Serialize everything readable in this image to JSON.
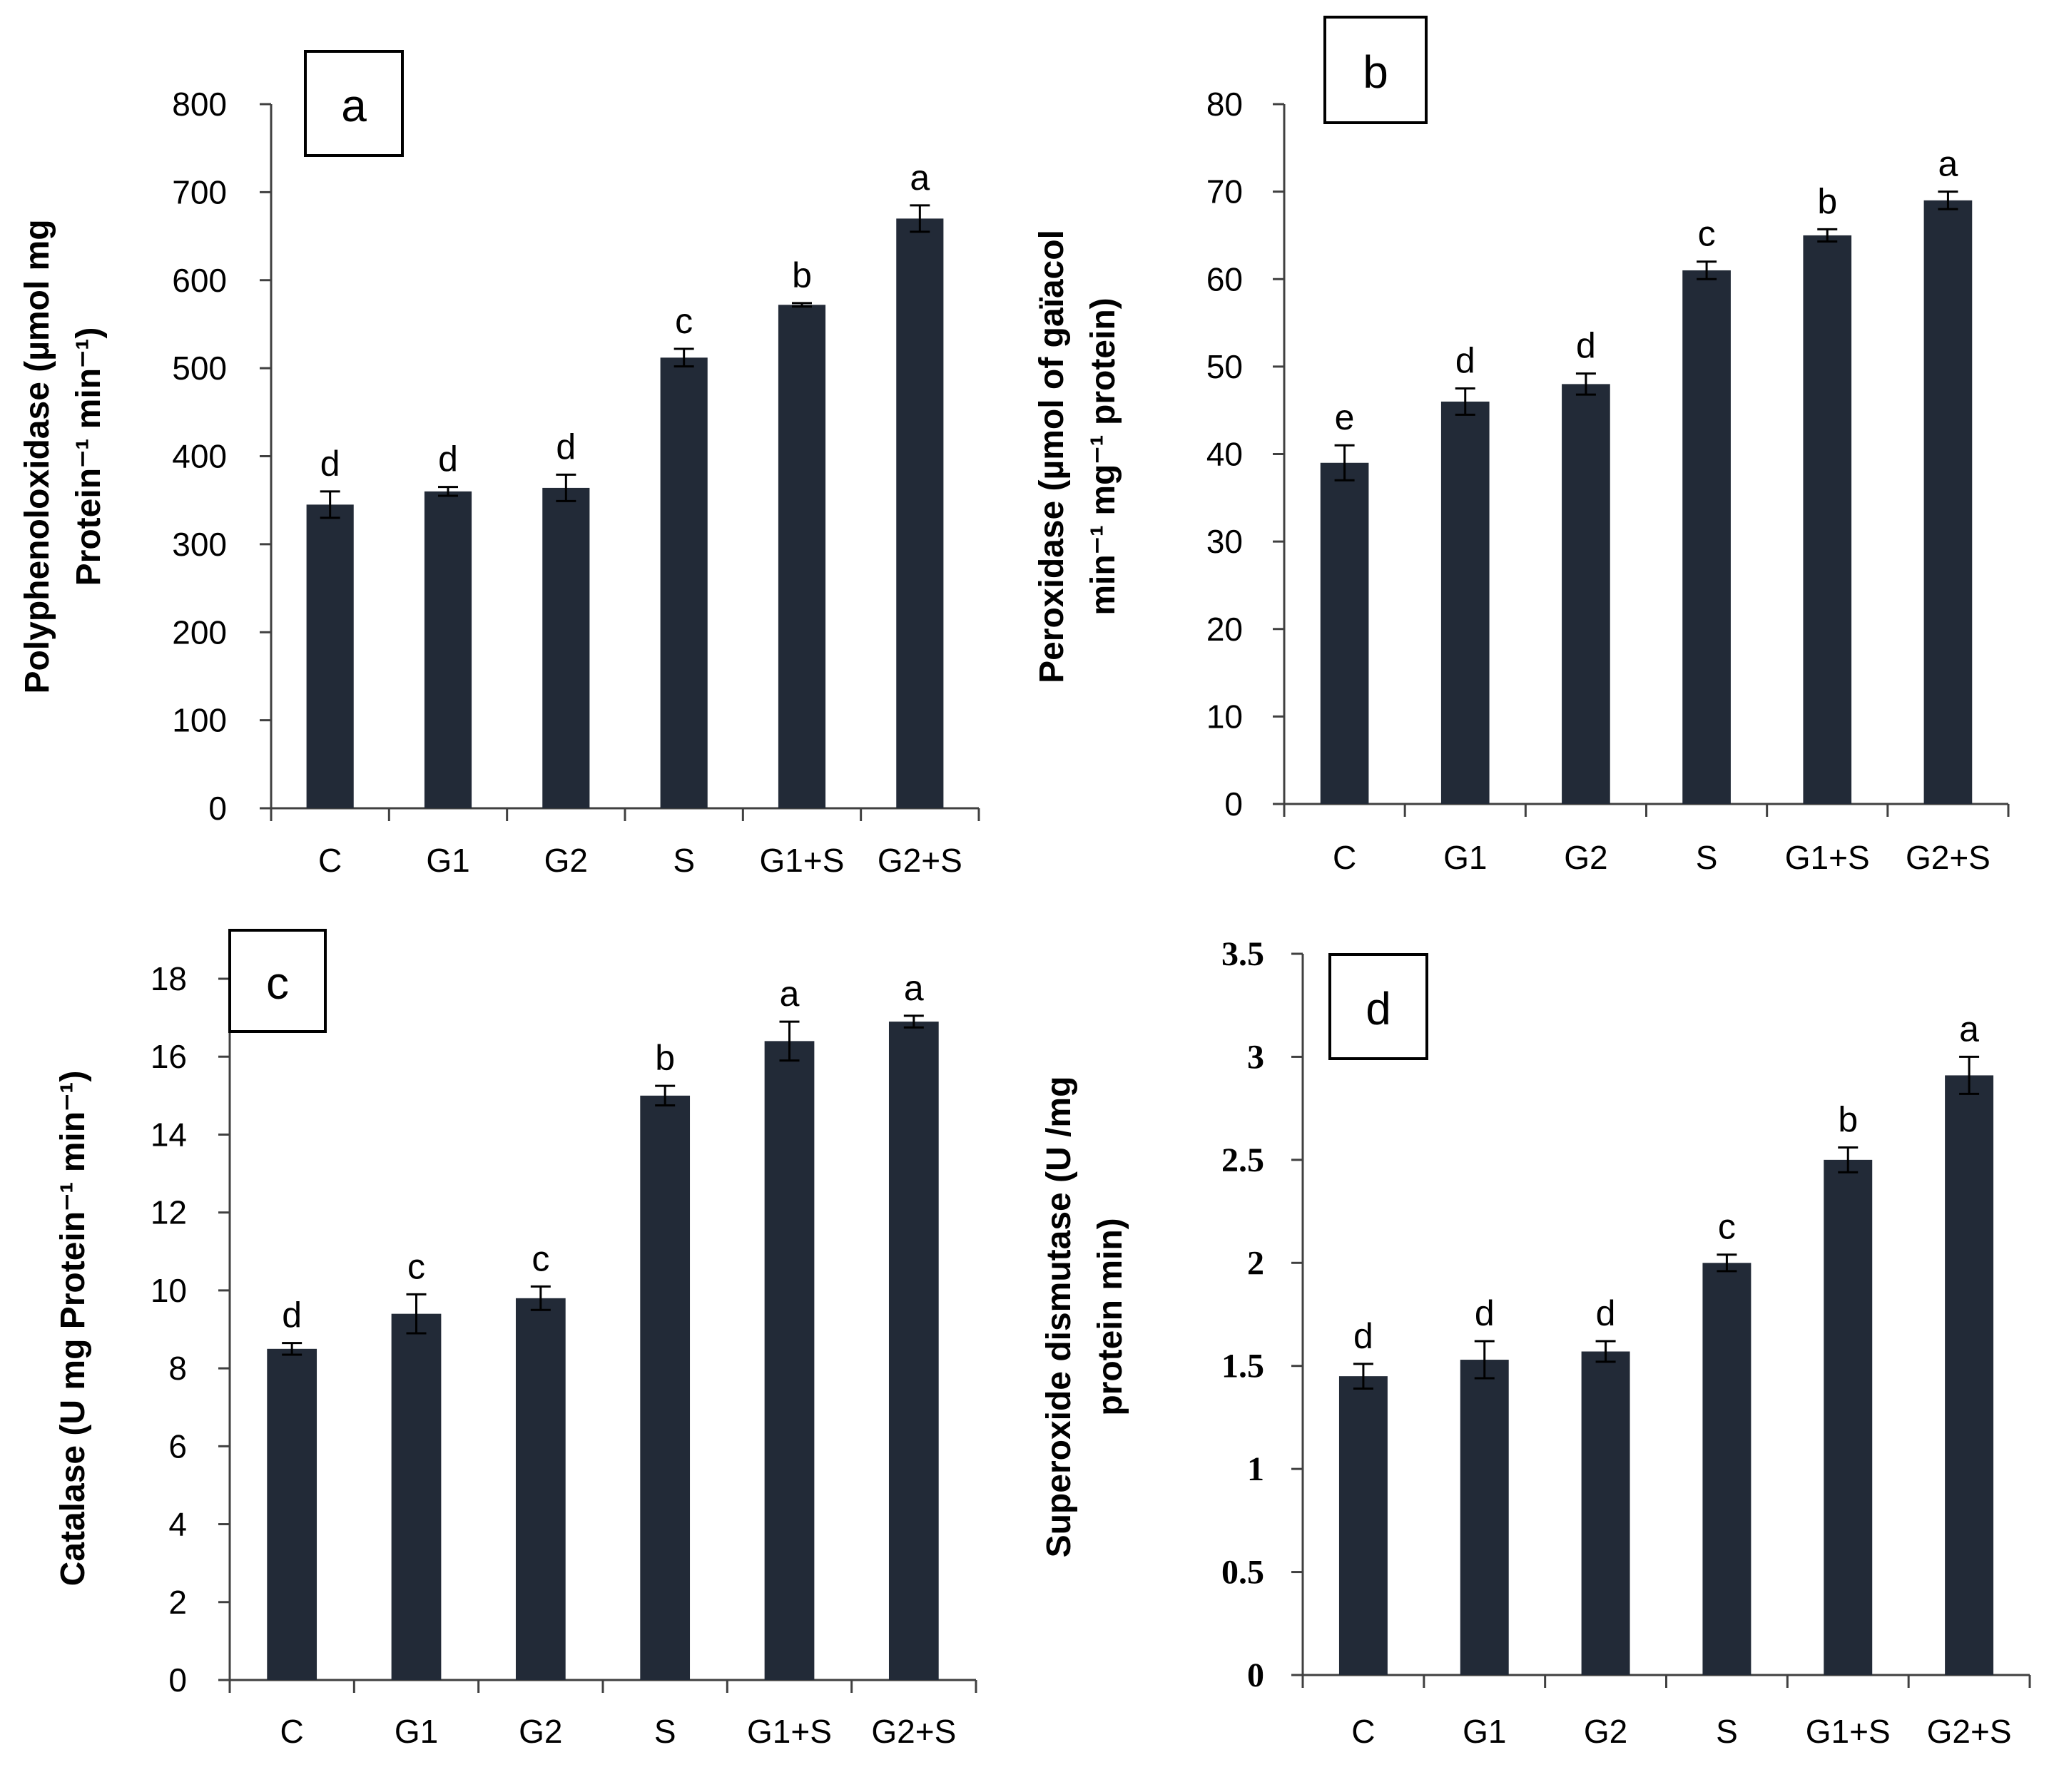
{
  "chart_data": [
    {
      "panel": "a",
      "type": "bar",
      "categories": [
        "C",
        "G1",
        "G2",
        "S",
        "G1+S",
        "G2+S"
      ],
      "values": [
        345,
        360,
        364,
        512,
        572,
        670
      ],
      "errors": [
        15,
        5,
        15,
        10,
        2,
        15
      ],
      "significance": [
        "d",
        "d",
        "d",
        "c",
        "b",
        "a"
      ],
      "ylim": [
        0,
        800
      ],
      "yticks": [
        "0",
        "100",
        "200",
        "300",
        "400",
        "500",
        "600",
        "700",
        "800"
      ],
      "ylabel": [
        "Polyphenoloxidase (µmol mg",
        "Protein⁻¹ min⁻¹)"
      ],
      "color": "#222a37"
    },
    {
      "panel": "b",
      "type": "bar",
      "categories": [
        "C",
        "G1",
        "G2",
        "S",
        "G1+S",
        "G2+S"
      ],
      "values": [
        39,
        46,
        48,
        61,
        65,
        69
      ],
      "errors": [
        2,
        1.5,
        1.2,
        1,
        0.7,
        1
      ],
      "significance": [
        "e",
        "d",
        "d",
        "c",
        "b",
        "a"
      ],
      "ylim": [
        0,
        80
      ],
      "yticks": [
        "0",
        "10",
        "20",
        "30",
        "40",
        "50",
        "60",
        "70",
        "80"
      ],
      "ylabel": [
        "Peroxidase (µmol of gaïacol",
        "min⁻¹ mg⁻¹ protein)"
      ],
      "color": "#222a37"
    },
    {
      "panel": "c",
      "type": "bar",
      "categories": [
        "C",
        "G1",
        "G2",
        "S",
        "G1+S",
        "G2+S"
      ],
      "values": [
        8.5,
        9.4,
        9.8,
        15,
        16.4,
        16.9
      ],
      "errors": [
        0.15,
        0.5,
        0.3,
        0.25,
        0.5,
        0.15
      ],
      "significance": [
        "d",
        "c",
        "c",
        "b",
        "a",
        "a"
      ],
      "ylim": [
        0,
        18
      ],
      "yticks": [
        "0",
        "2",
        "4",
        "6",
        "8",
        "10",
        "12",
        "14",
        "16",
        "18"
      ],
      "ylabel": [
        "Catalase  (U mg Protein⁻¹ min⁻¹)"
      ],
      "color": "#222a37"
    },
    {
      "panel": "d",
      "type": "bar",
      "categories": [
        "C",
        "G1",
        "G2",
        "S",
        "G1+S",
        "G2+S"
      ],
      "values": [
        1.45,
        1.53,
        1.57,
        2.0,
        2.5,
        2.91
      ],
      "errors": [
        0.06,
        0.09,
        0.05,
        0.04,
        0.06,
        0.09
      ],
      "significance": [
        "d",
        "d",
        "d",
        "c",
        "b",
        "a"
      ],
      "ylim": [
        0,
        3.5
      ],
      "yticks": [
        "0",
        "0.5",
        "1",
        "1.5",
        "2",
        "2.5",
        "3",
        "3.5"
      ],
      "ylabel": [
        "Superoxide dismutase (U /mg",
        "protein min)"
      ],
      "color": "#222a37"
    }
  ]
}
